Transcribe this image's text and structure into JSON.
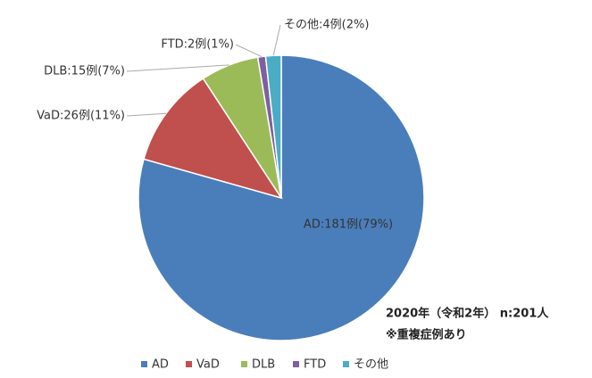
{
  "chart_data": {
    "type": "pie",
    "categories": [
      "AD",
      "VaD",
      "DLB",
      "FTD",
      "その他"
    ],
    "values": [
      181,
      26,
      15,
      2,
      4
    ],
    "value_labels": [
      "AD:181例(79%)",
      "VaD:26例(11%)",
      "DLB:15例(7%)",
      "FTD:2例(1%)",
      "その他:4例(2%)"
    ],
    "colors": [
      "#4a7ebb",
      "#c0504d",
      "#9bbb59",
      "#7f5fa0",
      "#4bacc6"
    ],
    "annotations": [
      "2020年（令和2年） n:201人",
      "※重複症例あり"
    ],
    "legend": "bottom"
  }
}
